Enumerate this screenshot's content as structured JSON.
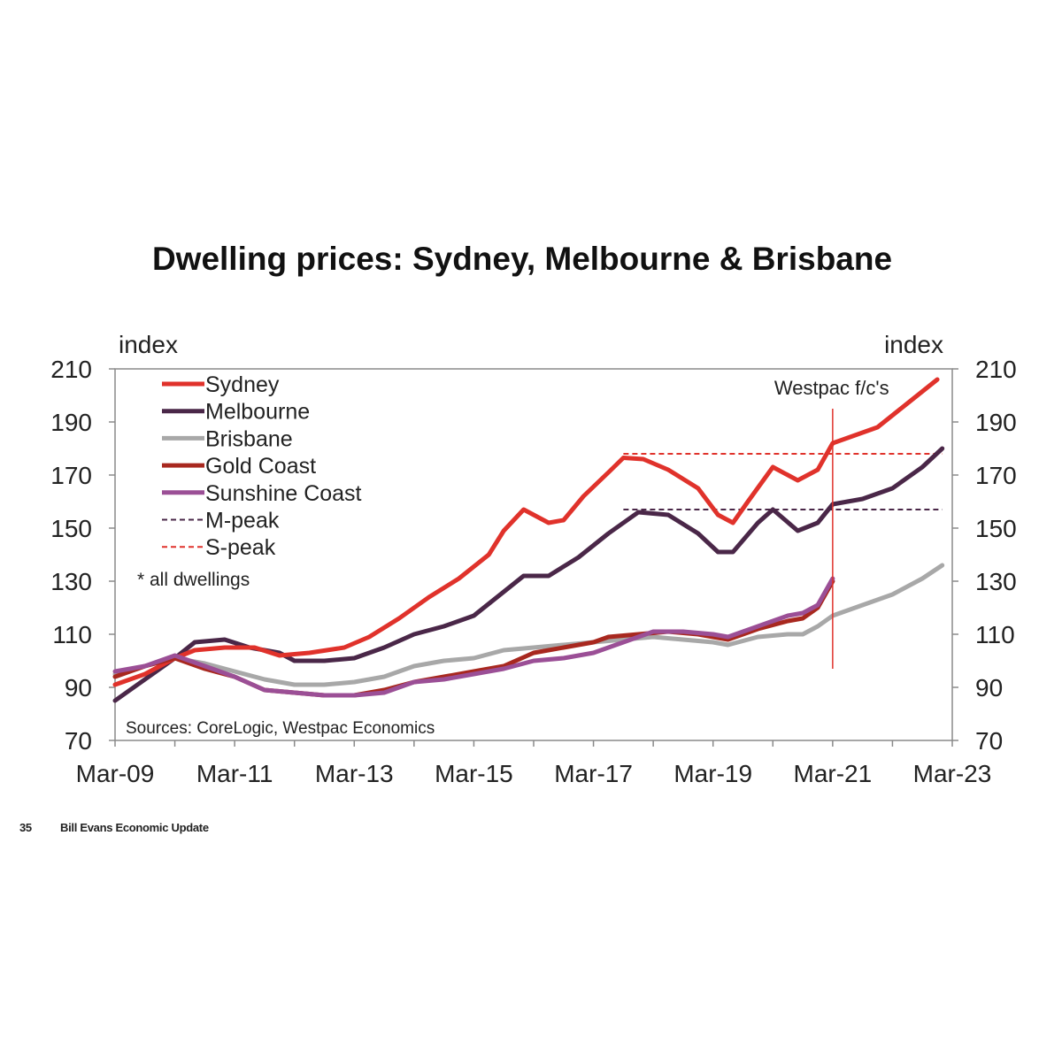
{
  "page": {
    "page_number": "35",
    "footer_text": "Bill Evans Economic Update"
  },
  "chart_data": {
    "type": "line",
    "title": "Dwelling prices: Sydney, Melbourne & Brisbane",
    "ylabel_left": "index",
    "ylabel_right": "index",
    "xlim": [
      "2009-03",
      "2023-03"
    ],
    "ylim": [
      70,
      210
    ],
    "y_ticks": [
      70,
      90,
      110,
      130,
      150,
      170,
      190,
      210
    ],
    "x_tick_labels": [
      {
        "date": "2009-03",
        "label": "Mar-09"
      },
      {
        "date": "2011-03",
        "label": "Mar-11"
      },
      {
        "date": "2013-03",
        "label": "Mar-13"
      },
      {
        "date": "2015-03",
        "label": "Mar-15"
      },
      {
        "date": "2017-03",
        "label": "Mar-17"
      },
      {
        "date": "2019-03",
        "label": "Mar-19"
      },
      {
        "date": "2021-03",
        "label": "Mar-21"
      },
      {
        "date": "2023-03",
        "label": "Mar-23"
      }
    ],
    "grid": false,
    "legend_position": "top-left",
    "forecast_marker": {
      "date": "2021-03",
      "label": "Westpac f/c's",
      "y_range": [
        97,
        195
      ]
    },
    "annotations": [
      "* all dwellings",
      "Sources: CoreLogic, Westpac Economics"
    ],
    "series": [
      {
        "name": "Sydney",
        "color": "#e0322b",
        "style": "solid",
        "points": [
          [
            "2009-03",
            91
          ],
          [
            "2009-09",
            95
          ],
          [
            "2010-03",
            101
          ],
          [
            "2010-07",
            104
          ],
          [
            "2011-01",
            105
          ],
          [
            "2011-07",
            105
          ],
          [
            "2011-12",
            102
          ],
          [
            "2012-06",
            103
          ],
          [
            "2013-01",
            105
          ],
          [
            "2013-06",
            109
          ],
          [
            "2013-12",
            116
          ],
          [
            "2014-06",
            124
          ],
          [
            "2014-12",
            131
          ],
          [
            "2015-06",
            140
          ],
          [
            "2015-09",
            149
          ],
          [
            "2016-01",
            157
          ],
          [
            "2016-06",
            152
          ],
          [
            "2016-09",
            153
          ],
          [
            "2017-01",
            162
          ],
          [
            "2017-06",
            171
          ],
          [
            "2017-09",
            176.5
          ],
          [
            "2018-01",
            176
          ],
          [
            "2018-06",
            172
          ],
          [
            "2018-12",
            165
          ],
          [
            "2019-04",
            155
          ],
          [
            "2019-07",
            152
          ],
          [
            "2019-10",
            160
          ],
          [
            "2020-03",
            173
          ],
          [
            "2020-08",
            168
          ],
          [
            "2020-12",
            172
          ],
          [
            "2021-03",
            182
          ],
          [
            "2021-06",
            184
          ],
          [
            "2021-12",
            188
          ],
          [
            "2022-06",
            197
          ],
          [
            "2022-12",
            206
          ]
        ]
      },
      {
        "name": "Melbourne",
        "color": "#4a2748",
        "style": "solid",
        "points": [
          [
            "2009-03",
            85
          ],
          [
            "2009-09",
            93
          ],
          [
            "2010-03",
            101
          ],
          [
            "2010-07",
            107
          ],
          [
            "2011-01",
            108
          ],
          [
            "2011-06",
            105
          ],
          [
            "2011-12",
            103
          ],
          [
            "2012-03",
            100
          ],
          [
            "2012-09",
            100
          ],
          [
            "2013-03",
            101
          ],
          [
            "2013-09",
            105
          ],
          [
            "2014-03",
            110
          ],
          [
            "2014-09",
            113
          ],
          [
            "2015-03",
            117
          ],
          [
            "2015-09",
            126
          ],
          [
            "2016-01",
            132
          ],
          [
            "2016-06",
            132
          ],
          [
            "2016-12",
            139
          ],
          [
            "2017-06",
            148
          ],
          [
            "2017-12",
            156
          ],
          [
            "2018-06",
            155
          ],
          [
            "2018-12",
            148
          ],
          [
            "2019-04",
            141
          ],
          [
            "2019-07",
            141
          ],
          [
            "2019-12",
            152
          ],
          [
            "2020-03",
            157
          ],
          [
            "2020-08",
            149
          ],
          [
            "2020-12",
            152
          ],
          [
            "2021-03",
            159
          ],
          [
            "2021-09",
            161
          ],
          [
            "2022-03",
            165
          ],
          [
            "2022-09",
            173
          ],
          [
            "2023-01",
            180
          ]
        ]
      },
      {
        "name": "Brisbane",
        "color": "#a8a8a8",
        "style": "solid",
        "points": [
          [
            "2009-03",
            95
          ],
          [
            "2009-09",
            98
          ],
          [
            "2010-03",
            101
          ],
          [
            "2010-09",
            99
          ],
          [
            "2011-03",
            96
          ],
          [
            "2011-09",
            93
          ],
          [
            "2012-03",
            91
          ],
          [
            "2012-09",
            91
          ],
          [
            "2013-03",
            92
          ],
          [
            "2013-09",
            94
          ],
          [
            "2014-03",
            98
          ],
          [
            "2014-09",
            100
          ],
          [
            "2015-03",
            101
          ],
          [
            "2015-09",
            104
          ],
          [
            "2016-03",
            105
          ],
          [
            "2016-09",
            106
          ],
          [
            "2017-03",
            107
          ],
          [
            "2017-09",
            108
          ],
          [
            "2018-03",
            109
          ],
          [
            "2018-09",
            108
          ],
          [
            "2019-03",
            107
          ],
          [
            "2019-06",
            106
          ],
          [
            "2019-12",
            109
          ],
          [
            "2020-06",
            110
          ],
          [
            "2020-09",
            110
          ],
          [
            "2020-12",
            113
          ],
          [
            "2021-03",
            117
          ],
          [
            "2021-09",
            121
          ],
          [
            "2022-03",
            125
          ],
          [
            "2022-09",
            131
          ],
          [
            "2023-01",
            136
          ]
        ]
      },
      {
        "name": "Gold Coast",
        "color": "#a8281f",
        "style": "solid",
        "points": [
          [
            "2009-03",
            94
          ],
          [
            "2009-09",
            98
          ],
          [
            "2010-03",
            101
          ],
          [
            "2010-09",
            97
          ],
          [
            "2011-03",
            94
          ],
          [
            "2011-09",
            89
          ],
          [
            "2012-03",
            88
          ],
          [
            "2012-09",
            87
          ],
          [
            "2013-03",
            87
          ],
          [
            "2013-09",
            89
          ],
          [
            "2014-03",
            92
          ],
          [
            "2014-09",
            94
          ],
          [
            "2015-03",
            96
          ],
          [
            "2015-09",
            98
          ],
          [
            "2016-03",
            103
          ],
          [
            "2016-09",
            105
          ],
          [
            "2017-03",
            107
          ],
          [
            "2017-06",
            109
          ],
          [
            "2017-12",
            110
          ],
          [
            "2018-06",
            111
          ],
          [
            "2018-12",
            110
          ],
          [
            "2019-06",
            108
          ],
          [
            "2019-12",
            112
          ],
          [
            "2020-06",
            115
          ],
          [
            "2020-09",
            116
          ],
          [
            "2020-12",
            120
          ],
          [
            "2021-03",
            130
          ]
        ]
      },
      {
        "name": "Sunshine Coast",
        "color": "#9b4f96",
        "style": "solid",
        "points": [
          [
            "2009-03",
            96
          ],
          [
            "2009-09",
            98
          ],
          [
            "2010-03",
            102
          ],
          [
            "2010-09",
            98
          ],
          [
            "2011-03",
            94
          ],
          [
            "2011-09",
            89
          ],
          [
            "2012-03",
            88
          ],
          [
            "2012-09",
            87
          ],
          [
            "2013-03",
            87
          ],
          [
            "2013-09",
            88
          ],
          [
            "2014-03",
            92
          ],
          [
            "2014-09",
            93
          ],
          [
            "2015-03",
            95
          ],
          [
            "2015-09",
            97
          ],
          [
            "2016-03",
            100
          ],
          [
            "2016-09",
            101
          ],
          [
            "2017-03",
            103
          ],
          [
            "2017-09",
            107
          ],
          [
            "2018-03",
            111
          ],
          [
            "2018-09",
            111
          ],
          [
            "2019-03",
            110
          ],
          [
            "2019-06",
            109
          ],
          [
            "2019-12",
            113
          ],
          [
            "2020-06",
            117
          ],
          [
            "2020-09",
            118
          ],
          [
            "2020-12",
            121
          ],
          [
            "2021-03",
            131
          ]
        ]
      },
      {
        "name": "M-peak",
        "color": "#4a2748",
        "style": "dashed",
        "points": [
          [
            "2017-09",
            157
          ],
          [
            "2023-01",
            157
          ]
        ]
      },
      {
        "name": "S-peak",
        "color": "#e0322b",
        "style": "dashed",
        "points": [
          [
            "2017-09",
            178
          ],
          [
            "2023-01",
            178
          ]
        ]
      }
    ]
  }
}
